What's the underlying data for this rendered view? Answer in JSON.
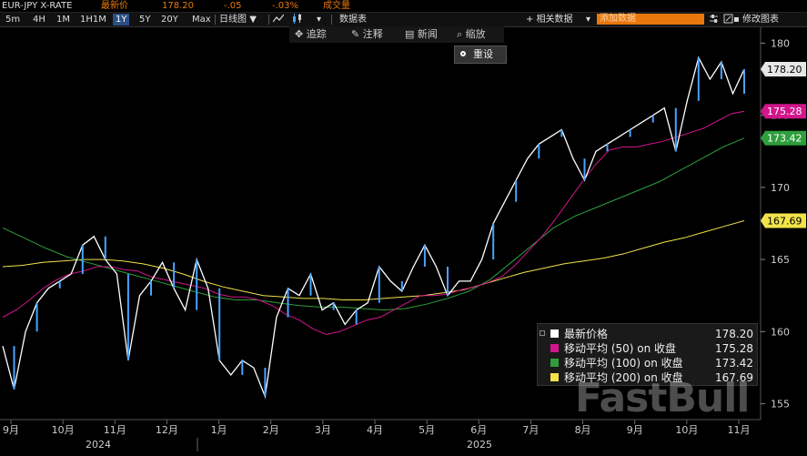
{
  "header": {
    "symbol": "EUR-JPY X-RATE",
    "last_label": "最新价",
    "last_value": "178.20",
    "change": "-.05",
    "change_pct": "-.03%",
    "volume_label": "成交量"
  },
  "toolbar": {
    "ranges": [
      "5m",
      "4H",
      "1M",
      "1H1M",
      "1Y",
      "5Y",
      "20Y",
      "Max"
    ],
    "active_range": "1Y",
    "chart_type": "日线图",
    "data_table": "数据表",
    "related": "+ 相关数据",
    "add_data_placeholder": "添加数据",
    "edit_chart": "修改图表"
  },
  "tools": {
    "track": "追踪",
    "annotate": "注释",
    "news": "新闻",
    "zoom": "缩放"
  },
  "reset_label": "重设",
  "price_labels": [
    {
      "text": "178.20",
      "value": 178.2,
      "bg": "#e6e6e6",
      "fg": "#000"
    },
    {
      "text": "175.28",
      "value": 175.28,
      "bg": "#d1168c",
      "fg": "#fff"
    },
    {
      "text": "173.42",
      "value": 173.42,
      "bg": "#2e9e3c",
      "fg": "#fff"
    },
    {
      "text": "167.69",
      "value": 167.69,
      "bg": "#f2e34a",
      "fg": "#000"
    }
  ],
  "legend": [
    {
      "name": "最新价格",
      "value": "178.20",
      "color": "#ffffff"
    },
    {
      "name": "移动平均 (50) on 收盘",
      "value": "175.28",
      "color": "#d1168c"
    },
    {
      "name": "移动平均 (100) on 收盘",
      "value": "173.42",
      "color": "#2e9e3c"
    },
    {
      "name": "移动平均 (200) on 收盘",
      "value": "167.69",
      "color": "#f2e34a"
    }
  ],
  "watermark": "FastBull",
  "chart_data": {
    "type": "line",
    "title": "EUR-JPY X-RATE",
    "y_ticks": [
      155,
      160,
      165,
      170,
      175,
      180
    ],
    "ylim": [
      153.9,
      181.1
    ],
    "x_month_labels": [
      "9月",
      "10月",
      "11月",
      "12月",
      "1月",
      "2月",
      "3月",
      "4月",
      "5月",
      "6月",
      "7月",
      "8月",
      "9月",
      "10月",
      "11月"
    ],
    "x_year_labels": [
      "2024",
      "2025"
    ],
    "grid": false,
    "legend_position": "bottom-right",
    "series": [
      {
        "name": "最新价格",
        "color": "#ffffff",
        "values": [
          159,
          156,
          160,
          162,
          163,
          163.5,
          164,
          166,
          166.6,
          165,
          164,
          158,
          162.5,
          163.5,
          164.8,
          163,
          161.5,
          165,
          163,
          158,
          157,
          158,
          157.5,
          155.5,
          161,
          163,
          162.5,
          164,
          161.5,
          162,
          160.5,
          161.5,
          162,
          164.5,
          163.5,
          162.8,
          164.5,
          166,
          164.5,
          162.5,
          163.5,
          163.5,
          165,
          167.5,
          169,
          170.5,
          172,
          173,
          173.5,
          174,
          172,
          170.5,
          172.5,
          173,
          173.5,
          174,
          174.5,
          175,
          175.5,
          172.5,
          176,
          179,
          177.5,
          178.7,
          176.5,
          178.2
        ]
      },
      {
        "name": "移动平均 (50) on 收盘",
        "color": "#d1168c",
        "values": [
          161,
          161.5,
          162.2,
          163,
          163.6,
          164,
          164.2,
          164.5,
          164.5,
          164.3,
          164.2,
          163.8,
          163.6,
          163.4,
          163.2,
          163,
          162.6,
          162.4,
          162.4,
          162.2,
          161.8,
          161.2,
          160.8,
          160.2,
          159.8,
          160,
          160.4,
          160.8,
          161,
          161.5,
          162,
          162.5,
          162.5,
          162.6,
          162.9,
          163.1,
          163.4,
          163.8,
          164.6,
          165.6,
          166.6,
          167.8,
          169.1,
          170.4,
          171.6,
          172.6,
          172.8,
          172.8,
          173,
          173.2,
          173.5,
          173.8,
          174.1,
          174.6,
          175.1,
          175.28
        ]
      },
      {
        "name": "移动平均 (100) on 收盘",
        "color": "#2e9e3c",
        "values": [
          167.2,
          166.5,
          165.8,
          165.2,
          164.8,
          164.4,
          164,
          163.6,
          163.2,
          162.8,
          162.4,
          162.2,
          162.2,
          162,
          161.8,
          161.7,
          161.7,
          161.6,
          161.5,
          161.6,
          161.9,
          162.3,
          162.8,
          163.6,
          164.8,
          166,
          167.2,
          168,
          168.6,
          169.2,
          169.8,
          170.4,
          171.2,
          172,
          172.8,
          173.42
        ]
      },
      {
        "name": "移动平均 (200) on 收盘",
        "color": "#f2e34a",
        "values": [
          164.5,
          164.6,
          164.8,
          164.9,
          165,
          165,
          164.9,
          164.7,
          164.4,
          164,
          163.5,
          163.1,
          162.8,
          162.5,
          162.4,
          162.3,
          162.3,
          162.2,
          162.2,
          162.3,
          162.4,
          162.5,
          162.7,
          162.9,
          163.3,
          163.7,
          164.1,
          164.4,
          164.7,
          164.9,
          165.1,
          165.4,
          165.8,
          166.2,
          166.5,
          166.9,
          167.3,
          167.69
        ]
      }
    ]
  }
}
